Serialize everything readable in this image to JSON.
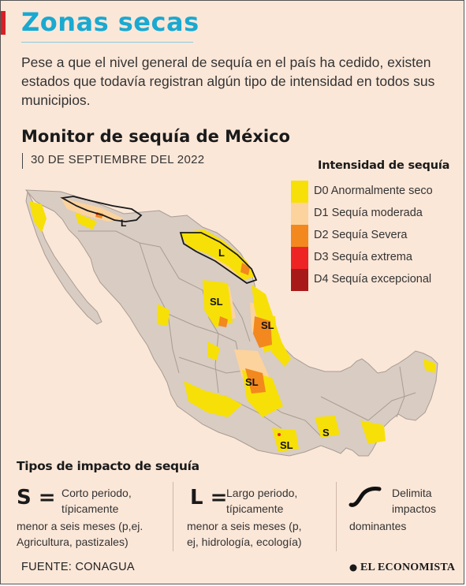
{
  "header": {
    "title": "Zonas secas",
    "subtitle": "Pese a que el nivel general de sequía en el país ha cedido, existen estados que todavía registran algún tipo de intensidad en todos sus municipios."
  },
  "map": {
    "title": "Monitor de sequía de México",
    "date": "30 DE SEPTIEMBRE DEL 2022",
    "labels": [
      "L",
      "L",
      "SL",
      "SL",
      "SL",
      "S",
      "SL"
    ]
  },
  "legend": {
    "title": "Intensidad de sequía",
    "items": [
      {
        "label": "D0 Anormalmente seco",
        "color": "#f7e007"
      },
      {
        "label": "D1 Sequía moderada",
        "color": "#fcd39c"
      },
      {
        "label": "D2 Sequía Severa",
        "color": "#f2881e"
      },
      {
        "label": "D3 Sequía extrema",
        "color": "#ee2424"
      },
      {
        "label": "D4 Sequía excepcional",
        "color": "#a81a1a"
      }
    ]
  },
  "impact": {
    "title": "Tipos de impacto de sequía",
    "items": [
      {
        "symbol": "S =",
        "line1": "Corto periodo,",
        "line2": "típicamente",
        "line3": "menor a seis meses (p,ej.",
        "line4": "Agricultura, pastizales)"
      },
      {
        "symbol": "L =",
        "line1": "Largo periodo,",
        "line2": "típicamente",
        "line3": "menor a seis meses (p,",
        "line4": "ej, hidrología, ecología)"
      }
    ],
    "boundary": {
      "line1": "Delimita",
      "line2": "impactos",
      "line3": "dominantes"
    }
  },
  "footer": {
    "source": "FUENTE: CONAGUA",
    "brand": "EL ECONOMISTA"
  },
  "colors": {
    "land": "#d8ccc3",
    "state_border": "#a89c93",
    "title": "#1aa9d1",
    "accent": "#d81f26",
    "background": "#fbe7d8"
  }
}
